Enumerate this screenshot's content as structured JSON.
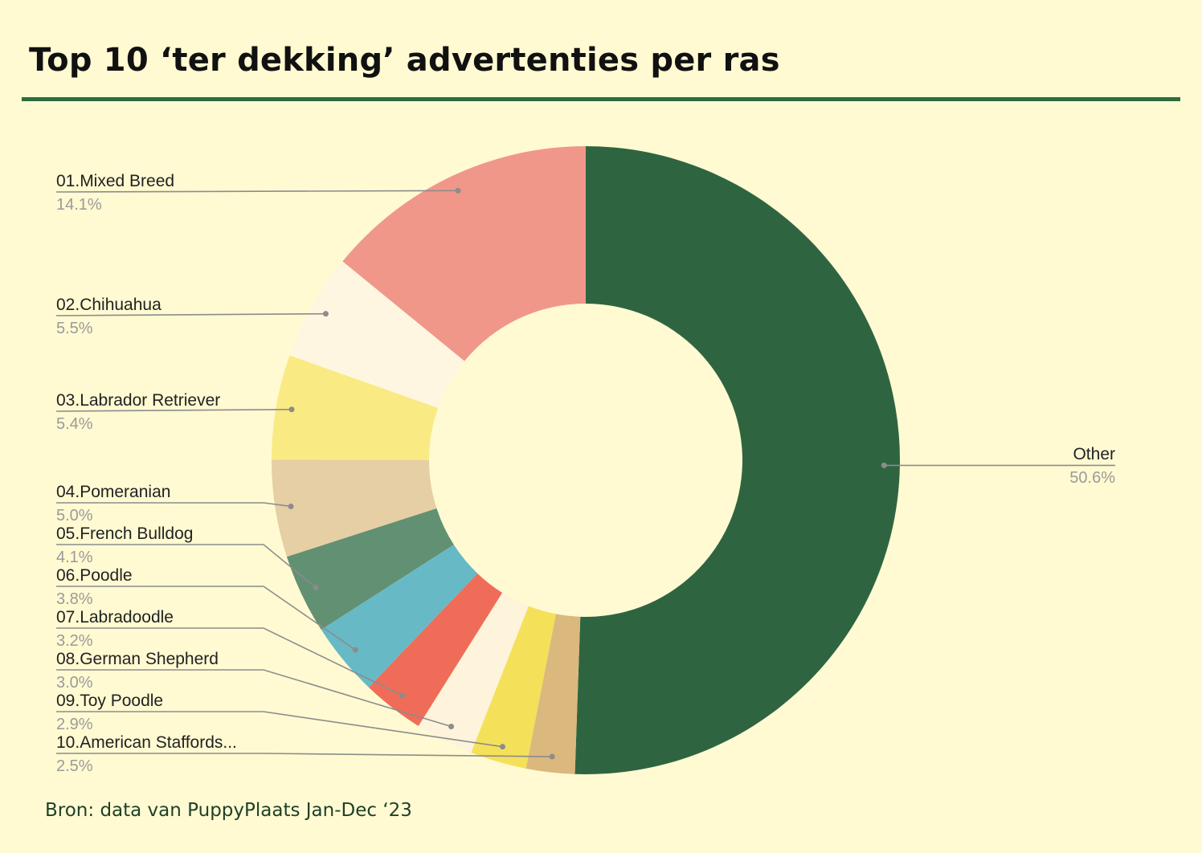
{
  "title": "Top 10 ‘ter dekking’ advertenties per ras",
  "source": "Bron: data van PuppyPlaats Jan-Dec ‘23",
  "chart_data": {
    "type": "pie",
    "variant": "donut",
    "title": "Top 10 ‘ter dekking’ advertenties per ras",
    "legend": "none",
    "slices": [
      {
        "label": "Other",
        "value": 50.6,
        "display": "50.6%",
        "color": "#2e6540"
      },
      {
        "label": "10.American Staffords...",
        "value": 2.5,
        "display": "2.5%",
        "color": "#dbb87d"
      },
      {
        "label": "09.Toy Poodle",
        "value": 2.9,
        "display": "2.9%",
        "color": "#f5e05a"
      },
      {
        "label": "08.German Shepherd",
        "value": 3.0,
        "display": "3.0%",
        "color": "#fef3db"
      },
      {
        "label": "07.Labradoodle",
        "value": 3.2,
        "display": "3.2%",
        "color": "#ef6d58"
      },
      {
        "label": "06.Poodle",
        "value": 3.8,
        "display": "3.8%",
        "color": "#67b9c6"
      },
      {
        "label": "05.French Bulldog",
        "value": 4.1,
        "display": "4.1%",
        "color": "#629073"
      },
      {
        "label": "04.Pomeranian",
        "value": 5.0,
        "display": "5.0%",
        "color": "#e6cea5"
      },
      {
        "label": "03.Labrador Retriever",
        "value": 5.4,
        "display": "5.4%",
        "color": "#f9ea84"
      },
      {
        "label": "02.Chihuahua",
        "value": 5.5,
        "display": "5.5%",
        "color": "#fff6e1"
      },
      {
        "label": "01.Mixed Breed",
        "value": 14.1,
        "display": "14.1%",
        "color": "#f0978a"
      }
    ]
  }
}
